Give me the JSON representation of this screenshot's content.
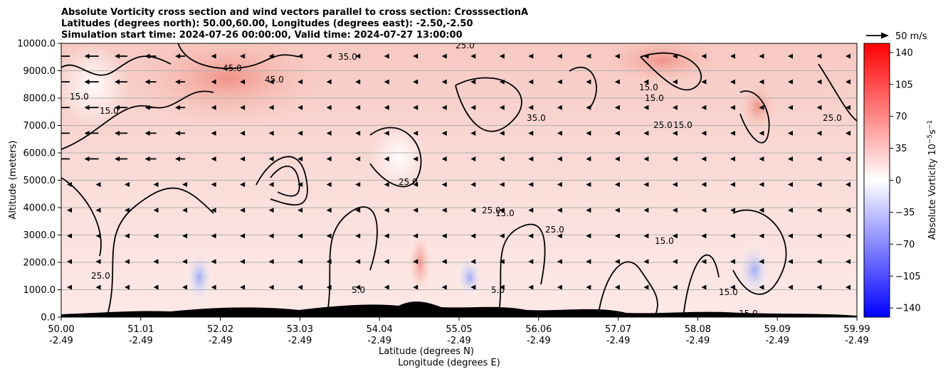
{
  "chart_data": {
    "type": "heatmap",
    "title_lines": [
      "Absolute Vorticity cross section and wind vectors parallel to cross section: CrosssectionA",
      "Latitudes (degrees north): 50.00,60.00, Longitudes (degrees east): -2.50,-2.50",
      "Simulation start time: 2024-07-26 00:00:00, Valid time: 2024-07-27 13:00:00"
    ],
    "ylabel": "Altitude (meters)",
    "xlabel_lines": [
      "Latitude (degrees N)",
      "Longitude (degrees E)"
    ],
    "x_ticks": [
      {
        "lat": "50.00",
        "lon": "-2.49"
      },
      {
        "lat": "51.01",
        "lon": "-2.49"
      },
      {
        "lat": "52.02",
        "lon": "-2.49"
      },
      {
        "lat": "53.03",
        "lon": "-2.49"
      },
      {
        "lat": "54.04",
        "lon": "-2.49"
      },
      {
        "lat": "55.05",
        "lon": "-2.49"
      },
      {
        "lat": "56.06",
        "lon": "-2.49"
      },
      {
        "lat": "57.07",
        "lon": "-2.49"
      },
      {
        "lat": "58.08",
        "lon": "-2.49"
      },
      {
        "lat": "59.09",
        "lon": "-2.49"
      },
      {
        "lat": "59.99",
        "lon": "-2.49"
      }
    ],
    "xlim": [
      50.0,
      59.99
    ],
    "y_ticks": [
      "0.0",
      "1000.0",
      "2000.0",
      "3000.0",
      "4000.0",
      "5000.0",
      "6000.0",
      "7000.0",
      "8000.0",
      "9000.0",
      "10000.0"
    ],
    "ylim": [
      0,
      10000
    ],
    "grid": "horizontal",
    "colorbar": {
      "label": "Absolute Vorticity 10$^{-5}$s$^{-1}$",
      "label_main": "Absolute Vorticity 10",
      "label_exp1": "−5",
      "label_mid": "s",
      "label_exp2": "−1",
      "ticks": [
        "140",
        "105",
        "70",
        "35",
        "0",
        "−35",
        "−70",
        "−105",
        "−140"
      ],
      "range": [
        -150,
        150
      ],
      "colormap": "bwr",
      "color_low": "#0000ff",
      "color_mid": "#ffffff",
      "color_high": "#ff0000"
    },
    "quiver_key": {
      "label": "50 m/s",
      "value": 50
    },
    "contour_labels": [
      "5.0",
      "15.0",
      "25.0",
      "35.0",
      "45.0"
    ],
    "contour_color": "#000000",
    "terrain_color": "#000000"
  }
}
